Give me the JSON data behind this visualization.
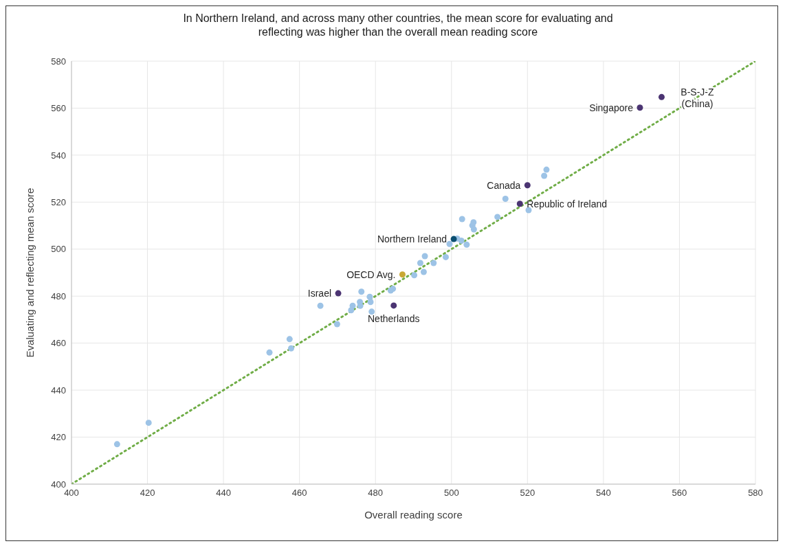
{
  "chart_data": {
    "type": "scatter",
    "title": "In Northern Ireland, and across many other countries, the mean score for evaluating and reflecting was higher than the overall mean reading score",
    "xlabel": "Overall reading score",
    "ylabel": "Evaluating and reflecting mean score",
    "xlim": [
      400,
      580
    ],
    "xticks": [
      400,
      420,
      440,
      460,
      480,
      500,
      520,
      540,
      560,
      580
    ],
    "ylim": [
      400,
      580
    ],
    "yticks": [
      400,
      420,
      440,
      460,
      480,
      500,
      520,
      540,
      560,
      580
    ],
    "grid": true,
    "marker": "circle",
    "series": [
      {
        "type": "line",
        "color": "#70ad47",
        "line_style": "dotted",
        "marker": "none",
        "x": [
          400,
          580
        ],
        "values": [
          400,
          580
        ]
      },
      {
        "color": "#9dc3e6",
        "x": [
          412.0,
          420.3,
          452.1,
          457.4,
          457.8,
          465.5,
          469.9,
          473.6,
          474.0,
          475.9,
          476.0,
          476.3,
          478.5,
          478.7,
          479.0,
          484.0,
          484.6,
          490.2,
          491.8,
          492.7,
          493.0,
          495.3,
          498.5,
          499.5,
          501.5,
          502.6,
          502.8,
          504.0,
          505.5,
          505.8,
          505.9,
          512.1,
          514.2,
          520.3,
          524.4,
          525.0
        ],
        "values": [
          417.0,
          426.1,
          456.0,
          461.7,
          457.8,
          475.9,
          468.1,
          474.0,
          475.9,
          477.5,
          475.9,
          481.9,
          479.7,
          477.5,
          473.4,
          482.4,
          483.1,
          488.9,
          494.1,
          490.3,
          497.0,
          494.1,
          496.6,
          502.2,
          504.5,
          503.6,
          512.8,
          501.9,
          510.1,
          511.4,
          508.4,
          513.7,
          521.4,
          516.6,
          531.2,
          533.8
        ]
      },
      {
        "color": "#4b3472",
        "x": [
          470.2,
          484.8,
          518.0,
          520.0,
          549.6,
          555.3
        ],
        "values": [
          481.2,
          476.0,
          519.3,
          527.2,
          560.2,
          564.7
        ]
      },
      {
        "color": "#c9a834",
        "x": [
          487.1
        ],
        "values": [
          489.2
        ]
      },
      {
        "color": "#0b4f71",
        "x": [
          500.6
        ],
        "values": [
          504.3
        ]
      }
    ],
    "annotations": [
      {
        "text": "Canada",
        "x": 520.0,
        "y": 527.2
      },
      {
        "text": "Republic of Ireland",
        "x": 518.0,
        "y": 519.3
      },
      {
        "text": "Northern Ireland",
        "x": 500.6,
        "y": 504.3
      },
      {
        "text": "OECD Avg.",
        "x": 487.1,
        "y": 489.2
      },
      {
        "text": "Israel",
        "x": 470.2,
        "y": 481.2
      },
      {
        "text": "Netherlands",
        "x": 484.8,
        "y": 476.0
      },
      {
        "text": "Singapore",
        "x": 549.6,
        "y": 560.2
      },
      {
        "text": "B-S-J-Z (China)",
        "x": 555.3,
        "y": 564.7
      }
    ]
  }
}
